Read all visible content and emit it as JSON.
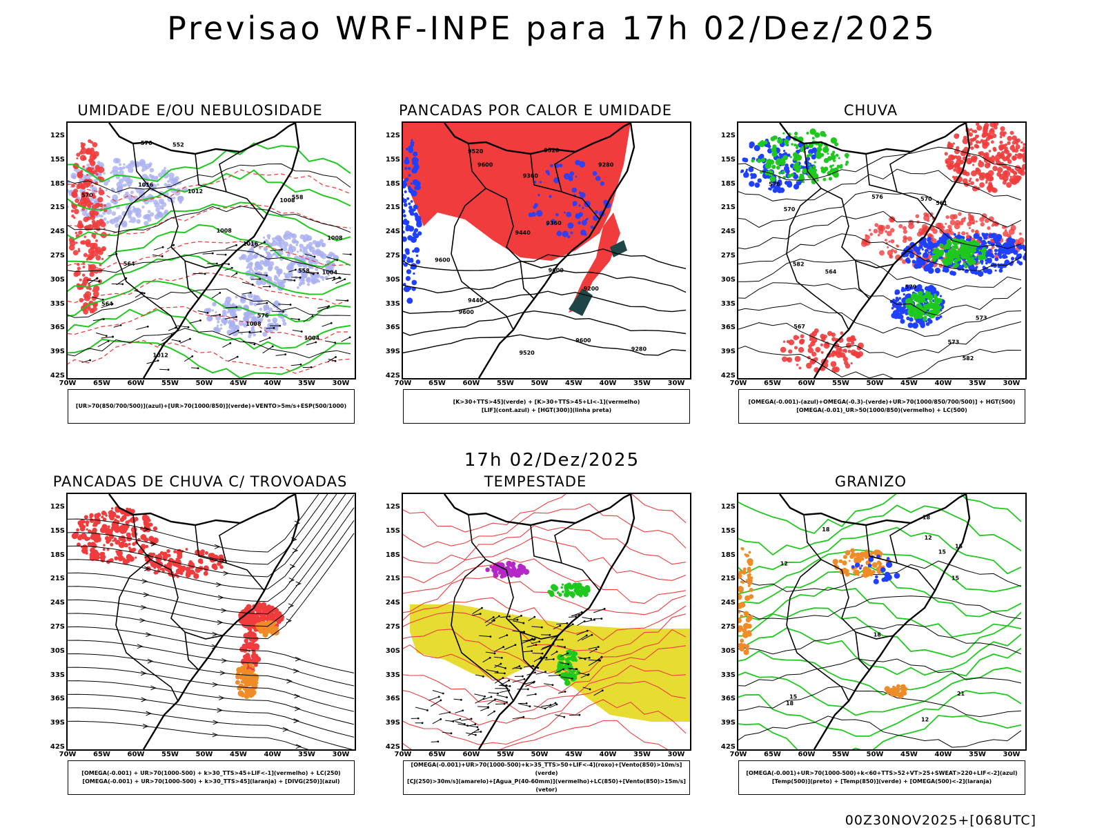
{
  "header": {
    "title": "Previsao WRF-INPE  para 17h 02/Dez/2025",
    "middle_time": "17h 02/Dez/2025",
    "run_label": "00Z30NOV2025+[068UTC]"
  },
  "axes": {
    "lat_labels": [
      "12S",
      "15S",
      "18S",
      "21S",
      "24S",
      "27S",
      "30S",
      "33S",
      "36S",
      "39S",
      "42S"
    ],
    "lon_labels": [
      "70W",
      "65W",
      "60W",
      "55W",
      "50W",
      "45W",
      "40W",
      "35W",
      "30W"
    ]
  },
  "colors": {
    "red": "#f03c3c",
    "green": "#1ec81e",
    "blue": "#2040ff",
    "lavender": "#aab0f0",
    "yellow": "#e6dc32",
    "orange": "#f08c28",
    "darkgreen": "#1e4646",
    "purple": "#b428c8"
  },
  "panels": [
    {
      "id": "umidade",
      "title": "UMIDADE E/OU NEBULOSIDADE",
      "legend_lines": [
        "[UR>70(850/700/500)](azul)+[UR>70(1000/850)](verde)+VENTO>5m/s+ESP(500/1000)"
      ],
      "contour_labels": [
        "1004",
        "1008",
        "1008",
        "1012",
        "1016",
        "1012",
        "1008",
        "1004",
        "1008",
        "1016",
        "570",
        "576",
        "564",
        "558",
        "552",
        "564",
        "558",
        "576"
      ]
    },
    {
      "id": "pancadas-calor",
      "title": "PANCADAS POR CALOR E UMIDADE",
      "legend_lines": [
        "[K>30+TTS>45](verde) + [K>30+TTS>45+LI<-1](vermelho)",
        "[LIF](cont.azul) + [HGT(300)](linha preta)"
      ],
      "contour_labels": [
        "9600",
        "9600",
        "9600",
        "9600",
        "9600",
        "9520",
        "9520",
        "9440",
        "9440",
        "9360",
        "9360",
        "9280",
        "9280",
        "9200",
        "9520"
      ]
    },
    {
      "id": "chuva",
      "title": "CHUVA",
      "legend_lines": [
        "[OMEGA(-0.001)-(azul)+OMEGA(-0.3)-(verde)+UR>70(1000/850/700/500)] + HGT(500)",
        "[OMEGA(-0.01)_UR>50(1000/850)(vermelho) + LC(500)"
      ],
      "contour_labels": [
        "582",
        "582",
        "579",
        "576",
        "573",
        "570",
        "567",
        "564",
        "561",
        "576",
        "570",
        "573"
      ]
    },
    {
      "id": "pancadas-trovoadas",
      "title": "PANCADAS DE CHUVA C/ TROVOADAS",
      "legend_lines": [
        "[OMEGA(-0.001) + UR>70(1000-500) + k>30_TTS>45+LIF<-1](vermelho) + LC(250)",
        "[OMEGA(-0.001) + UR>70(1000-500) + k>30_TTS>45](laranja) + [DIVG(250)](azul)"
      ],
      "contour_labels": []
    },
    {
      "id": "tempestade",
      "title": "TEMPESTADE",
      "legend_lines": [
        "[OMEGA(-0.001)+UR>70(1000-500)+k>35_TTS>50+LIF<-4](roxo)+[Vento(850)>10m/s](verde)",
        "[CJ(250)>30m/s](amarelo)+[Agua_P(40-60mm)](vermelho)+LC(850)+[Vento(850)>15m/s](vetor)"
      ],
      "contour_labels": []
    },
    {
      "id": "granizo",
      "title": "GRANIZO",
      "legend_lines": [
        "[OMEGA(-0.001)+UR>70(1000-500)+k<60+TTS>52+VT>25+SWEAT>220+LIF<-2](azul)",
        "[Temp(500)](preto) + [Temp(850)](verde) + [OMEGA(500)<-2](laranja)"
      ],
      "contour_labels": [
        "18",
        "15",
        "12",
        "12",
        "15",
        "18",
        "21",
        "18",
        "12",
        "15",
        "15",
        "18"
      ]
    }
  ]
}
